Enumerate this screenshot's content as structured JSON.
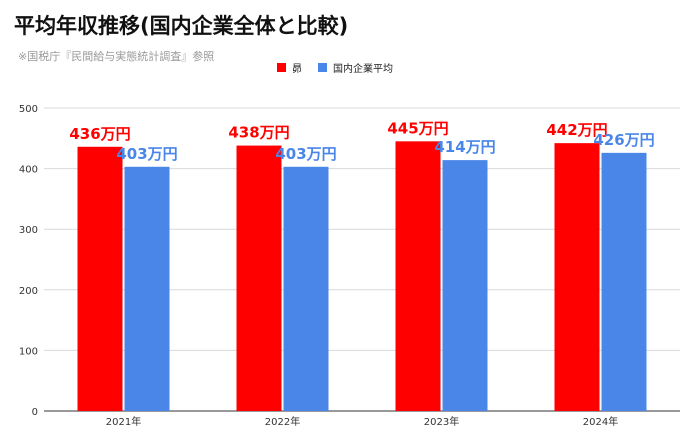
{
  "header": {
    "title": "平均年収推移(国内企業全体と比較)",
    "subtitle": "※国税庁『民間給与実態統計調査』参照"
  },
  "colors": {
    "series_1": "#ff0000",
    "series_2": "#4a86e8",
    "grid": "#d9d9d9",
    "axis": "#333333"
  },
  "chart_data": {
    "type": "bar",
    "categories": [
      "2021年",
      "2022年",
      "2023年",
      "2024年"
    ],
    "series": [
      {
        "name": "昴",
        "values": [
          436,
          438,
          445,
          442
        ],
        "labels": [
          "436万円",
          "438万円",
          "445万円",
          "442万円"
        ]
      },
      {
        "name": "国内企業平均",
        "values": [
          403,
          403,
          414,
          426
        ],
        "labels": [
          "403万円",
          "403万円",
          "414万円",
          "426万円"
        ]
      }
    ],
    "ylim": [
      0,
      500
    ],
    "yticks": [
      "0",
      "100",
      "200",
      "300",
      "400",
      "500"
    ],
    "grid": true,
    "legend": "top"
  }
}
